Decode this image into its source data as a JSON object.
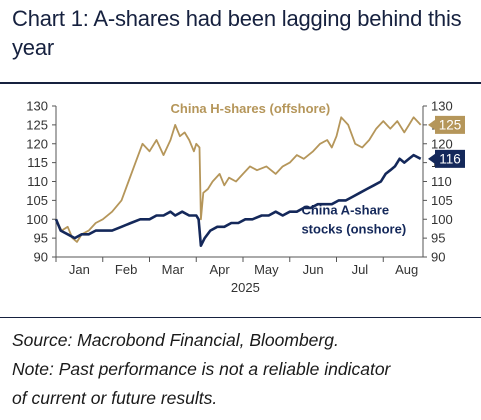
{
  "title": "Chart 1: A-shares had been lagging behind this year",
  "source": "Source: Macrobond Financial, Bloomberg.",
  "note_line1": "Note: Past performance is not a reliable indicator",
  "note_line2": "of current or future results.",
  "chart_data": {
    "type": "line",
    "x_tick_labels": [
      "Jan",
      "Feb",
      "Mar",
      "Apr",
      "May",
      "Jun",
      "Jul",
      "Aug"
    ],
    "x_axis_year": "2025",
    "ylim": [
      90,
      130
    ],
    "y_ticks": [
      90,
      95,
      100,
      105,
      110,
      115,
      120,
      125,
      130
    ],
    "y_tick_labels": [
      "90",
      "95",
      "100",
      "105",
      "110",
      "115",
      "120",
      "125",
      "130"
    ],
    "grid": false,
    "annotations": {
      "h_label": "China H-shares (offshore)",
      "a_label_line1": "China A-share",
      "a_label_line2": "stocks (onshore)"
    },
    "end_labels": {
      "h": "125",
      "a": "116"
    },
    "series": [
      {
        "name": "China H-shares (offshore)",
        "color": "#b5965a",
        "points": [
          [
            0.0,
            100
          ],
          [
            0.12,
            97
          ],
          [
            0.25,
            98
          ],
          [
            0.35,
            95
          ],
          [
            0.45,
            94
          ],
          [
            0.55,
            96
          ],
          [
            0.7,
            97
          ],
          [
            0.85,
            99
          ],
          [
            1.0,
            100
          ],
          [
            1.2,
            102
          ],
          [
            1.4,
            105
          ],
          [
            1.55,
            110
          ],
          [
            1.7,
            115
          ],
          [
            1.85,
            120
          ],
          [
            2.0,
            118
          ],
          [
            2.15,
            121
          ],
          [
            2.3,
            117
          ],
          [
            2.45,
            121
          ],
          [
            2.55,
            125
          ],
          [
            2.65,
            122
          ],
          [
            2.75,
            123
          ],
          [
            2.85,
            121
          ],
          [
            2.95,
            118
          ],
          [
            3.0,
            120
          ],
          [
            3.07,
            119
          ],
          [
            3.1,
            100
          ],
          [
            3.15,
            107
          ],
          [
            3.25,
            108
          ],
          [
            3.35,
            110
          ],
          [
            3.5,
            112
          ],
          [
            3.6,
            109
          ],
          [
            3.7,
            111
          ],
          [
            3.85,
            110
          ],
          [
            4.0,
            112
          ],
          [
            4.15,
            114
          ],
          [
            4.3,
            113
          ],
          [
            4.5,
            114
          ],
          [
            4.7,
            112
          ],
          [
            4.85,
            114
          ],
          [
            5.0,
            115
          ],
          [
            5.15,
            117
          ],
          [
            5.3,
            116
          ],
          [
            5.5,
            118
          ],
          [
            5.65,
            120
          ],
          [
            5.8,
            121
          ],
          [
            5.9,
            119
          ],
          [
            6.0,
            122
          ],
          [
            6.1,
            127
          ],
          [
            6.25,
            125
          ],
          [
            6.4,
            120
          ],
          [
            6.55,
            119
          ],
          [
            6.7,
            121
          ],
          [
            6.85,
            124
          ],
          [
            7.0,
            126
          ],
          [
            7.15,
            124
          ],
          [
            7.3,
            126
          ],
          [
            7.45,
            123
          ],
          [
            7.55,
            125
          ],
          [
            7.65,
            127
          ],
          [
            7.8,
            125
          ]
        ]
      },
      {
        "name": "China A-share stocks (onshore)",
        "color": "#14285a",
        "points": [
          [
            0.0,
            100
          ],
          [
            0.1,
            97
          ],
          [
            0.25,
            96
          ],
          [
            0.4,
            95
          ],
          [
            0.55,
            96
          ],
          [
            0.7,
            96
          ],
          [
            0.85,
            97
          ],
          [
            1.0,
            97
          ],
          [
            1.2,
            97
          ],
          [
            1.4,
            98
          ],
          [
            1.6,
            99
          ],
          [
            1.8,
            100
          ],
          [
            2.0,
            100
          ],
          [
            2.15,
            101
          ],
          [
            2.3,
            101
          ],
          [
            2.45,
            102
          ],
          [
            2.55,
            101
          ],
          [
            2.7,
            102
          ],
          [
            2.85,
            101
          ],
          [
            3.0,
            101
          ],
          [
            3.05,
            100
          ],
          [
            3.1,
            93
          ],
          [
            3.18,
            95
          ],
          [
            3.3,
            97
          ],
          [
            3.45,
            98
          ],
          [
            3.6,
            98
          ],
          [
            3.75,
            99
          ],
          [
            3.9,
            99
          ],
          [
            4.05,
            100
          ],
          [
            4.2,
            100
          ],
          [
            4.4,
            101
          ],
          [
            4.55,
            101
          ],
          [
            4.7,
            102
          ],
          [
            4.85,
            101
          ],
          [
            5.0,
            102
          ],
          [
            5.15,
            102
          ],
          [
            5.3,
            103
          ],
          [
            5.45,
            103
          ],
          [
            5.6,
            104
          ],
          [
            5.75,
            104
          ],
          [
            5.9,
            104
          ],
          [
            6.05,
            105
          ],
          [
            6.2,
            105
          ],
          [
            6.35,
            106
          ],
          [
            6.5,
            107
          ],
          [
            6.65,
            108
          ],
          [
            6.8,
            109
          ],
          [
            6.95,
            110
          ],
          [
            7.05,
            112
          ],
          [
            7.15,
            113
          ],
          [
            7.25,
            114
          ],
          [
            7.35,
            116
          ],
          [
            7.45,
            115
          ],
          [
            7.55,
            116
          ],
          [
            7.65,
            117
          ],
          [
            7.8,
            116
          ]
        ]
      }
    ]
  }
}
